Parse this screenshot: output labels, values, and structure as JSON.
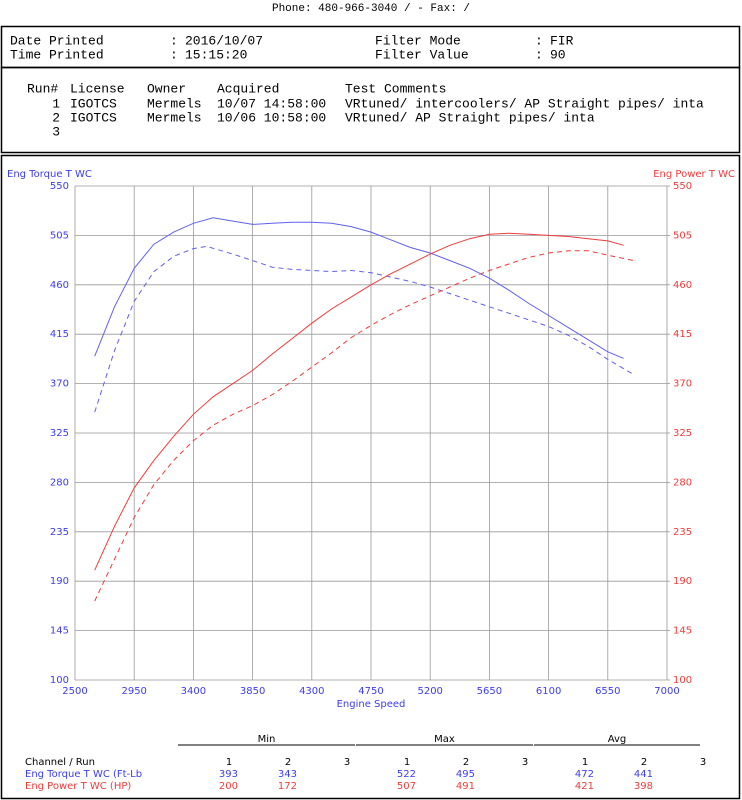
{
  "header": {
    "contact": "Phone: 480-966-3040 /  - Fax:  /"
  },
  "print_info": [
    {
      "label": "Date Printed",
      "sep": ":",
      "value": "2016/10/07"
    },
    {
      "label": "Time Printed",
      "sep": ":",
      "value": "15:15:20"
    },
    {
      "label": "Filter Mode",
      "sep": ":",
      "value": "FIR"
    },
    {
      "label": "Filter Value",
      "sep": ":",
      "value": "90"
    }
  ],
  "runs": {
    "columns": [
      "Run#",
      "License",
      "Owner",
      "Acquired",
      "Test Comments"
    ],
    "rows": [
      [
        "1",
        "IGOTCS",
        "Mermels",
        "10/07 14:58:00",
        "VRtuned/ intercoolers/ AP Straight pipes/ inta"
      ],
      [
        "2",
        "IGOTCS",
        "Mermels",
        "10/06 10:58:00",
        "VRtuned/ AP Straight pipes/ inta"
      ],
      [
        "3"
      ]
    ]
  },
  "chart_data": {
    "type": "line",
    "y_label": "Eng Torque T WC",
    "y2_label": "Eng Power T WC",
    "x_label": "Engine Speed",
    "xlim": [
      2500,
      7000
    ],
    "xticks": [
      2500,
      2950,
      3400,
      3850,
      4300,
      4750,
      5200,
      5650,
      6100,
      6550,
      7000
    ],
    "ylim": [
      100,
      550
    ],
    "yticks": [
      100,
      145,
      190,
      235,
      280,
      325,
      370,
      415,
      460,
      505,
      550
    ],
    "y2lim": [
      100,
      550
    ],
    "y2ticks": [
      100,
      145,
      190,
      235,
      280,
      325,
      370,
      415,
      460,
      505,
      550
    ],
    "grid": true,
    "series": [
      {
        "color": "#6060f0",
        "dashed": false,
        "axis": "y",
        "x": [
          2650,
          2800,
          2950,
          3100,
          3250,
          3400,
          3550,
          3700,
          3850,
          4000,
          4150,
          4300,
          4450,
          4600,
          4750,
          4900,
          5050,
          5200,
          5350,
          5500,
          5650,
          5800,
          5950,
          6100,
          6250,
          6400,
          6550,
          6670
        ],
        "values": [
          395,
          440,
          475,
          497,
          508,
          516,
          521,
          518,
          515,
          516,
          517,
          517,
          516,
          513,
          508,
          501,
          494,
          489,
          482,
          475,
          466,
          455,
          443,
          432,
          421,
          410,
          399,
          393
        ]
      },
      {
        "color": "#6060f0",
        "dashed": true,
        "axis": "y",
        "x": [
          2650,
          2800,
          2950,
          3100,
          3250,
          3400,
          3500,
          3700,
          3850,
          4000,
          4150,
          4300,
          4450,
          4600,
          4750,
          4900,
          5050,
          5200,
          5350,
          5500,
          5650,
          5800,
          5950,
          6100,
          6250,
          6400,
          6550,
          6750
        ],
        "values": [
          344,
          400,
          445,
          472,
          486,
          493,
          495,
          488,
          482,
          476,
          474,
          473,
          472,
          473,
          471,
          467,
          463,
          458,
          452,
          446,
          440,
          434,
          428,
          422,
          414,
          404,
          392,
          378
        ]
      },
      {
        "color": "#f03c3c",
        "dashed": false,
        "axis": "y2",
        "x": [
          2650,
          2800,
          2950,
          3100,
          3250,
          3400,
          3550,
          3700,
          3850,
          4000,
          4150,
          4300,
          4450,
          4600,
          4750,
          4900,
          5050,
          5200,
          5350,
          5500,
          5650,
          5800,
          5950,
          6100,
          6250,
          6400,
          6550,
          6670
        ],
        "values": [
          200,
          240,
          275,
          300,
          322,
          342,
          358,
          370,
          382,
          397,
          411,
          425,
          438,
          449,
          460,
          470,
          479,
          488,
          496,
          502,
          506,
          507,
          506,
          505,
          504,
          502,
          500,
          496
        ]
      },
      {
        "color": "#f03c3c",
        "dashed": true,
        "axis": "y2",
        "x": [
          2650,
          2800,
          2950,
          3100,
          3250,
          3400,
          3550,
          3700,
          3850,
          4000,
          4150,
          4300,
          4450,
          4600,
          4750,
          4900,
          5050,
          5200,
          5350,
          5500,
          5650,
          5800,
          5950,
          6100,
          6250,
          6400,
          6550,
          6750
        ],
        "values": [
          172,
          210,
          248,
          278,
          300,
          318,
          332,
          342,
          350,
          360,
          372,
          385,
          398,
          412,
          423,
          433,
          442,
          450,
          458,
          466,
          473,
          479,
          485,
          489,
          491,
          491,
          487,
          482
        ]
      }
    ]
  },
  "summary": {
    "groups": [
      "Min",
      "Max",
      "Avg"
    ],
    "header_label": "Channel / Run",
    "runs": [
      1,
      2,
      3
    ],
    "rows": [
      {
        "channel": "Eng Torque T WC (Ft-Lb",
        "values": [
          393,
          343,
          522,
          495,
          472,
          441
        ]
      },
      {
        "channel": "Eng Power T WC (HP)",
        "values": [
          200,
          172,
          507,
          491,
          421,
          398
        ]
      }
    ]
  }
}
